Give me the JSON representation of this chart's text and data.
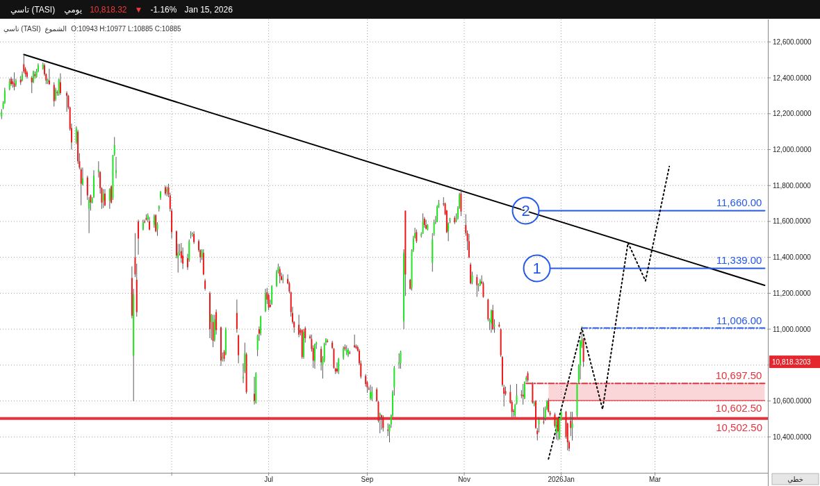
{
  "chart_data": {
    "type": "candlestick",
    "title": "تاسي (TASI)",
    "annotations": [
      "يومي",
      "10,818.32",
      "▼",
      "-1.16%",
      "Jan 15, 2026",
      "تاسي (TASI)",
      "الشموع",
      "O:10943 H:10977 L:10885 C:10885",
      "خطي",
      "10,818.3203"
    ],
    "x": [
      "2025-01-14",
      "2025-01-15",
      "2025-01-16",
      "2025-01-19",
      "2025-01-20",
      "2025-01-21",
      "2025-01-22",
      "2025-01-23",
      "2025-01-26",
      "2025-01-27",
      "2025-01-28",
      "2025-01-29",
      "2025-01-30",
      "2025-02-02",
      "2025-02-03",
      "2025-02-04",
      "2025-02-05",
      "2025-02-06",
      "2025-02-09",
      "2025-02-10",
      "2025-02-11",
      "2025-02-12",
      "2025-02-13",
      "2025-02-16",
      "2025-02-17",
      "2025-02-18",
      "2025-02-19",
      "2025-02-20",
      "2025-02-24",
      "2025-02-25",
      "2025-02-26",
      "2025-02-27",
      "2025-03-02",
      "2025-03-03",
      "2025-03-04",
      "2025-03-05",
      "2025-03-06",
      "2025-03-09",
      "2025-03-10",
      "2025-03-11",
      "2025-03-12",
      "2025-03-13",
      "2025-03-16",
      "2025-03-17",
      "2025-03-18",
      "2025-03-19",
      "2025-03-20",
      "2025-03-23",
      "2025-03-24",
      "2025-03-25",
      "2025-03-26",
      "2025-03-27",
      "2025-04-06",
      "2025-04-07",
      "2025-04-08",
      "2025-04-09",
      "2025-04-10",
      "2025-04-13",
      "2025-04-14",
      "2025-04-15",
      "2025-04-16",
      "2025-04-17",
      "2025-04-20",
      "2025-04-21",
      "2025-04-22",
      "2025-04-23",
      "2025-04-24",
      "2025-04-27",
      "2025-04-28",
      "2025-04-29",
      "2025-04-30",
      "2025-05-01",
      "2025-05-04",
      "2025-05-05",
      "2025-05-06",
      "2025-05-07",
      "2025-05-08",
      "2025-05-11",
      "2025-05-12",
      "2025-05-13",
      "2025-05-14",
      "2025-05-15",
      "2025-05-18",
      "2025-05-19",
      "2025-05-20",
      "2025-05-21",
      "2025-05-22",
      "2025-05-25",
      "2025-05-26",
      "2025-05-27",
      "2025-05-28",
      "2025-05-29",
      "2025-06-01",
      "2025-06-02",
      "2025-06-03",
      "2025-06-04",
      "2025-06-11",
      "2025-06-12",
      "2025-06-15",
      "2025-06-16",
      "2025-06-17",
      "2025-06-22",
      "2025-06-23",
      "2025-06-24",
      "2025-06-25",
      "2025-06-26",
      "2025-06-29",
      "2025-06-30",
      "2025-07-01",
      "2025-07-02",
      "2025-07-03",
      "2025-07-06",
      "2025-07-07",
      "2025-07-08",
      "2025-07-09",
      "2025-07-10",
      "2025-07-13",
      "2025-07-14",
      "2025-07-15",
      "2025-07-16",
      "2025-07-17",
      "2025-07-20",
      "2025-07-21",
      "2025-07-22",
      "2025-07-23",
      "2025-07-24",
      "2025-07-27",
      "2025-07-28",
      "2025-07-29",
      "2025-07-30",
      "2025-07-31",
      "2025-08-03",
      "2025-08-04",
      "2025-08-05",
      "2025-08-06",
      "2025-08-07",
      "2025-08-10",
      "2025-08-11",
      "2025-08-12",
      "2025-08-13",
      "2025-08-14",
      "2025-08-17",
      "2025-08-18",
      "2025-08-19",
      "2025-08-20",
      "2025-08-21",
      "2025-08-24",
      "2025-08-25",
      "2025-08-26",
      "2025-08-27",
      "2025-08-28",
      "2025-08-31",
      "2025-09-01",
      "2025-09-02",
      "2025-09-03",
      "2025-09-04",
      "2025-09-07",
      "2025-09-08",
      "2025-09-09",
      "2025-09-10",
      "2025-09-11",
      "2025-09-14",
      "2025-09-15",
      "2025-09-16",
      "2025-09-17",
      "2025-09-18",
      "2025-09-21",
      "2025-09-22",
      "2025-09-24",
      "2025-09-25",
      "2025-09-28",
      "2025-09-29",
      "2025-09-30",
      "2025-10-01",
      "2025-10-02",
      "2025-10-05",
      "2025-10-06",
      "2025-10-07",
      "2025-10-08",
      "2025-10-09",
      "2025-10-12",
      "2025-10-13",
      "2025-10-14",
      "2025-10-15",
      "2025-10-16",
      "2025-10-19",
      "2025-10-20",
      "2025-10-21",
      "2025-10-22",
      "2025-10-23",
      "2025-10-26",
      "2025-10-27",
      "2025-10-28",
      "2025-10-29",
      "2025-10-30",
      "2025-11-02",
      "2025-11-03",
      "2025-11-04",
      "2025-11-05",
      "2025-11-06",
      "2025-11-09",
      "2025-11-10",
      "2025-11-11",
      "2025-11-12",
      "2025-11-13",
      "2025-11-16",
      "2025-11-17",
      "2025-11-18",
      "2025-11-19",
      "2025-11-20",
      "2025-11-23",
      "2025-11-24",
      "2025-11-25",
      "2025-11-26",
      "2025-11-27",
      "2025-11-30",
      "2025-12-01",
      "2025-12-02",
      "2025-12-03",
      "2025-12-04",
      "2025-12-07",
      "2025-12-08",
      "2025-12-09",
      "2025-12-10",
      "2025-12-11",
      "2025-12-14",
      "2025-12-15",
      "2025-12-16",
      "2025-12-17",
      "2025-12-18",
      "2025-12-21",
      "2025-12-22",
      "2025-12-23",
      "2025-12-24",
      "2025-12-25",
      "2025-12-28",
      "2025-12-29",
      "2025-12-30",
      "2025-12-31",
      "2026-01-01",
      "2026-01-04",
      "2026-01-05",
      "2026-01-06",
      "2026-01-07",
      "2026-01-08",
      "2026-01-11",
      "2026-01-12",
      "2026-01-13",
      "2026-01-14",
      "2026-01-15"
    ],
    "ohlc": [
      [
        12185,
        12225,
        12170,
        12210
      ],
      [
        12230,
        12270,
        12225,
        12260
      ],
      [
        12260,
        12345,
        12255,
        12330
      ],
      [
        12335,
        12395,
        12330,
        12380
      ],
      [
        12395,
        12405,
        12355,
        12365
      ],
      [
        12380,
        12395,
        12345,
        12365
      ],
      [
        12370,
        12430,
        12330,
        12350
      ],
      [
        12360,
        12395,
        12350,
        12385
      ],
      [
        12390,
        12410,
        12360,
        12375
      ],
      [
        12385,
        12435,
        12380,
        12420
      ],
      [
        12475,
        12530,
        12425,
        12435
      ],
      [
        12450,
        12460,
        12405,
        12420
      ],
      [
        12430,
        12440,
        12395,
        12405
      ],
      [
        12400,
        12410,
        12315,
        12375
      ],
      [
        12375,
        12440,
        12370,
        12435
      ],
      [
        12420,
        12435,
        12395,
        12410
      ],
      [
        12405,
        12450,
        12400,
        12435
      ],
      [
        12435,
        12480,
        12430,
        12470
      ],
      [
        12450,
        12485,
        12445,
        12475
      ],
      [
        12470,
        12480,
        12410,
        12420
      ],
      [
        12420,
        12425,
        12365,
        12385
      ],
      [
        12375,
        12395,
        12365,
        12390
      ],
      [
        12385,
        12450,
        12360,
        12365
      ],
      [
        12360,
        12375,
        12240,
        12270
      ],
      [
        12280,
        12345,
        12270,
        12335
      ],
      [
        12320,
        12330,
        12300,
        12315
      ],
      [
        12310,
        12395,
        12300,
        12390
      ],
      [
        12375,
        12425,
        12305,
        12315
      ],
      [
        12315,
        12325,
        12210,
        12300
      ],
      [
        12300,
        12305,
        12225,
        12235
      ],
      [
        12235,
        12240,
        12105,
        12115
      ],
      [
        12120,
        12145,
        12000,
        12040
      ],
      [
        12040,
        12130,
        12030,
        12120
      ],
      [
        12100,
        12110,
        11920,
        11935
      ],
      [
        11935,
        11980,
        11890,
        11900
      ],
      [
        11890,
        11900,
        11690,
        11810
      ],
      [
        11805,
        11900,
        11800,
        11840
      ],
      [
        11845,
        11855,
        11720,
        11745
      ],
      [
        11670,
        11735,
        11535,
        11720
      ],
      [
        11745,
        11750,
        11660,
        11705
      ],
      [
        11705,
        11735,
        11700,
        11730
      ],
      [
        11735,
        11885,
        11730,
        11855
      ],
      [
        11875,
        11935,
        11845,
        11885
      ],
      [
        11875,
        11880,
        11755,
        11785
      ],
      [
        11785,
        11790,
        11670,
        11705
      ],
      [
        11715,
        11780,
        11675,
        11755
      ],
      [
        11755,
        11780,
        11685,
        11690
      ],
      [
        11715,
        11785,
        11670,
        11780
      ],
      [
        11795,
        11800,
        11700,
        11705
      ],
      [
        11730,
        11970,
        11720,
        11970
      ],
      [
        11975,
        12070,
        11965,
        12025
      ],
      [
        11870,
        11960,
        11840,
        11885
      ],
      [
        11285,
        11350,
        11060,
        11075
      ],
      [
        10850,
        11225,
        10600,
        11195
      ],
      [
        11400,
        11535,
        11290,
        11305
      ],
      [
        11275,
        11365,
        11070,
        11095
      ],
      [
        11600,
        11610,
        11415,
        11505
      ],
      [
        11555,
        11610,
        11550,
        11595
      ],
      [
        11600,
        11610,
        11590,
        11595
      ],
      [
        11620,
        11640,
        11605,
        11610
      ],
      [
        11610,
        11645,
        11595,
        11635
      ],
      [
        11600,
        11625,
        11550,
        11555
      ],
      [
        11580,
        11640,
        11565,
        11630
      ],
      [
        11635,
        11640,
        11540,
        11545
      ],
      [
        11555,
        11595,
        11520,
        11585
      ],
      [
        11670,
        11690,
        11655,
        11685
      ],
      [
        11730,
        11770,
        11720,
        11765
      ],
      [
        11790,
        11800,
        11745,
        11755
      ],
      [
        11765,
        11795,
        11740,
        11780
      ],
      [
        11790,
        11810,
        11735,
        11750
      ],
      [
        11745,
        11760,
        11655,
        11670
      ],
      [
        11660,
        11670,
        11505,
        11540
      ],
      [
        11545,
        11550,
        11395,
        11410
      ],
      [
        11395,
        11475,
        11315,
        11425
      ],
      [
        11425,
        11475,
        11410,
        11430
      ],
      [
        11435,
        11480,
        11370,
        11395
      ],
      [
        11410,
        11455,
        11335,
        11365
      ],
      [
        11395,
        11420,
        11330,
        11345
      ],
      [
        11385,
        11500,
        11375,
        11490
      ],
      [
        11525,
        11545,
        11505,
        11530
      ],
      [
        11530,
        11540,
        11515,
        11535
      ],
      [
        11530,
        11545,
        11475,
        11485
      ],
      [
        11490,
        11500,
        11430,
        11440
      ],
      [
        11440,
        11445,
        11370,
        11400
      ],
      [
        11400,
        11445,
        11385,
        11440
      ],
      [
        11425,
        11445,
        11300,
        11305
      ],
      [
        11270,
        11280,
        11215,
        11225
      ],
      [
        11200,
        11210,
        10950,
        11000
      ],
      [
        11040,
        11085,
        10940,
        11080
      ],
      [
        11040,
        11080,
        10900,
        10935
      ],
      [
        10940,
        11080,
        10930,
        11055
      ],
      [
        11095,
        11110,
        10970,
        10995
      ],
      [
        11010,
        11015,
        10795,
        10825
      ],
      [
        10835,
        10870,
        10820,
        10845
      ],
      [
        10875,
        10885,
        10820,
        10835
      ],
      [
        10860,
        11010,
        10855,
        11000
      ],
      [
        11090,
        11165,
        10980,
        11000
      ],
      [
        10965,
        10970,
        10810,
        10855
      ],
      [
        10725,
        10810,
        10700,
        10735
      ],
      [
        10765,
        10925,
        10755,
        10865
      ],
      [
        10860,
        10870,
        10640,
        10650
      ],
      [
        10640,
        10735,
        10580,
        10600
      ],
      [
        10590,
        10760,
        10585,
        10755
      ],
      [
        10885,
        10970,
        10850,
        10965
      ],
      [
        11000,
        11015,
        10935,
        10975
      ],
      [
        10975,
        11075,
        10965,
        11070
      ],
      [
        11100,
        11225,
        11095,
        11200
      ],
      [
        11205,
        11230,
        11140,
        11165
      ],
      [
        11190,
        11200,
        11105,
        11120
      ],
      [
        11135,
        11165,
        11120,
        11125
      ],
      [
        11140,
        11245,
        11135,
        11240
      ],
      [
        11240,
        11330,
        11235,
        11320
      ],
      [
        11320,
        11365,
        11310,
        11345
      ],
      [
        11335,
        11350,
        11255,
        11295
      ],
      [
        11295,
        11315,
        11270,
        11275
      ],
      [
        11275,
        11305,
        11255,
        11280
      ],
      [
        11280,
        11305,
        11250,
        11255
      ],
      [
        11255,
        11265,
        11200,
        11210
      ],
      [
        11205,
        11210,
        11070,
        11095
      ],
      [
        11090,
        11125,
        11030,
        11040
      ],
      [
        11040,
        11045,
        10980,
        11010
      ],
      [
        11025,
        11080,
        10955,
        10970
      ],
      [
        10995,
        11005,
        10965,
        10980
      ],
      [
        10995,
        11000,
        10835,
        10845
      ],
      [
        10845,
        11000,
        10835,
        10985
      ],
      [
        11005,
        11015,
        10925,
        10950
      ],
      [
        10960,
        10970,
        10945,
        10950
      ],
      [
        10945,
        10970,
        10875,
        10890
      ],
      [
        10895,
        10910,
        10785,
        10825
      ],
      [
        10820,
        10920,
        10780,
        10915
      ],
      [
        10915,
        10930,
        10890,
        10925
      ],
      [
        10890,
        10905,
        10770,
        10815
      ],
      [
        10800,
        10850,
        10725,
        10840
      ],
      [
        10825,
        10925,
        10815,
        10920
      ],
      [
        10925,
        10950,
        10910,
        10945
      ],
      [
        10935,
        10945,
        10925,
        10930
      ],
      [
        10925,
        10935,
        10890,
        10895
      ],
      [
        10890,
        10895,
        10780,
        10785
      ],
      [
        10780,
        10785,
        10750,
        10765
      ],
      [
        10780,
        10815,
        10755,
        10765
      ],
      [
        10765,
        10840,
        10750,
        10835
      ],
      [
        10840,
        10905,
        10830,
        10895
      ],
      [
        10900,
        10915,
        10880,
        10890
      ],
      [
        10870,
        10910,
        10855,
        10885
      ],
      [
        10855,
        10895,
        10845,
        10885
      ],
      [
        10870,
        10880,
        10860,
        10865
      ],
      [
        10910,
        10970,
        10895,
        10900
      ],
      [
        10905,
        10915,
        10890,
        10895
      ],
      [
        10900,
        10910,
        10875,
        10880
      ],
      [
        10880,
        10890,
        10800,
        10810
      ],
      [
        10810,
        10825,
        10725,
        10735
      ],
      [
        10740,
        10750,
        10680,
        10695
      ],
      [
        10705,
        10710,
        10645,
        10675
      ],
      [
        10670,
        10680,
        10660,
        10665
      ],
      [
        10615,
        10690,
        10605,
        10650
      ],
      [
        10610,
        10680,
        10600,
        10650
      ],
      [
        10665,
        10675,
        10595,
        10600
      ],
      [
        10595,
        10600,
        10480,
        10490
      ],
      [
        10520,
        10535,
        10420,
        10530
      ],
      [
        10520,
        10525,
        10440,
        10510
      ],
      [
        10510,
        10520,
        10430,
        10450
      ],
      [
        10440,
        10475,
        10405,
        10435
      ],
      [
        10430,
        10470,
        10370,
        10465
      ],
      [
        10470,
        10525,
        10450,
        10520
      ],
      [
        10520,
        10660,
        10510,
        10650
      ],
      [
        10675,
        10795,
        10630,
        10785
      ],
      [
        10805,
        10865,
        10780,
        10815
      ],
      [
        10810,
        10880,
        10780,
        10875
      ],
      [
        11045,
        11445,
        11000,
        11425
      ],
      [
        11660,
        11660,
        11185,
        11305
      ],
      [
        11275,
        11280,
        11220,
        11225
      ],
      [
        11230,
        11445,
        11215,
        11440
      ],
      [
        11440,
        11520,
        11430,
        11505
      ],
      [
        11510,
        11565,
        11505,
        11535
      ],
      [
        11540,
        11555,
        11480,
        11490
      ],
      [
        11520,
        11540,
        11510,
        11530
      ],
      [
        11535,
        11645,
        11530,
        11605
      ],
      [
        11615,
        11625,
        11565,
        11580
      ],
      [
        11580,
        11610,
        11555,
        11560
      ],
      [
        11555,
        11585,
        11550,
        11580
      ],
      [
        11370,
        11535,
        11320,
        11500
      ],
      [
        11530,
        11610,
        11520,
        11595
      ],
      [
        11595,
        11630,
        11585,
        11600
      ],
      [
        11600,
        11690,
        11595,
        11685
      ],
      [
        11685,
        11720,
        11675,
        11700
      ],
      [
        11700,
        11735,
        11685,
        11695
      ],
      [
        11700,
        11705,
        11635,
        11640
      ],
      [
        11660,
        11665,
        11535,
        11540
      ],
      [
        11545,
        11595,
        11490,
        11590
      ],
      [
        11605,
        11620,
        11590,
        11615
      ],
      [
        11620,
        11630,
        11585,
        11595
      ],
      [
        11600,
        11645,
        11595,
        11610
      ],
      [
        11615,
        11685,
        11610,
        11675
      ],
      [
        11675,
        11760,
        11670,
        11750
      ],
      [
        11755,
        11780,
        11630,
        11655
      ],
      [
        11580,
        11640,
        11520,
        11535
      ],
      [
        11535,
        11550,
        11440,
        11490
      ],
      [
        11490,
        11530,
        11395,
        11400
      ],
      [
        11360,
        11370,
        11250,
        11255
      ],
      [
        11260,
        11320,
        11250,
        11300
      ],
      [
        11290,
        11305,
        11180,
        11245
      ],
      [
        11240,
        11255,
        11210,
        11245
      ],
      [
        11245,
        11280,
        11240,
        11270
      ],
      [
        11265,
        11300,
        11250,
        11255
      ],
      [
        11255,
        11265,
        11175,
        11180
      ],
      [
        11165,
        11170,
        11045,
        11055
      ],
      [
        11040,
        11060,
        10995,
        11050
      ],
      [
        11030,
        11110,
        10980,
        11105
      ],
      [
        11105,
        11135,
        10995,
        11000
      ],
      [
        11015,
        11055,
        10980,
        11025
      ],
      [
        11025,
        11040,
        11010,
        11015
      ],
      [
        11000,
        11005,
        10845,
        10855
      ],
      [
        10845,
        10850,
        10680,
        10690
      ],
      [
        10675,
        10690,
        10570,
        10640
      ],
      [
        10655,
        10680,
        10630,
        10640
      ],
      [
        10650,
        10690,
        10585,
        10590
      ],
      [
        10595,
        10605,
        10510,
        10540
      ],
      [
        10545,
        10555,
        10510,
        10540
      ],
      [
        10520,
        10585,
        10510,
        10580
      ],
      [
        10585,
        10695,
        10580,
        10630
      ],
      [
        10635,
        10660,
        10615,
        10630
      ],
      [
        10635,
        10695,
        10580,
        10625
      ],
      [
        10615,
        10710,
        10610,
        10705
      ],
      [
        10715,
        10740,
        10705,
        10730
      ],
      [
        10755,
        10765,
        10705,
        10715
      ],
      [
        10695,
        10705,
        10585,
        10590
      ],
      [
        10580,
        10600,
        10570,
        10590
      ],
      [
        10600,
        10605,
        10445,
        10450
      ],
      [
        10435,
        10450,
        10380,
        10415
      ],
      [
        10470,
        10510,
        10425,
        10495
      ],
      [
        10485,
        10565,
        10470,
        10480
      ],
      [
        10505,
        10570,
        10490,
        10555
      ],
      [
        10555,
        10605,
        10550,
        10600
      ],
      [
        10600,
        10615,
        10535,
        10540
      ],
      [
        10535,
        10545,
        10515,
        10525
      ],
      [
        10525,
        10535,
        10450,
        10460
      ],
      [
        10420,
        10500,
        10385,
        10495
      ],
      [
        10505,
        10510,
        10380,
        10430
      ],
      [
        10390,
        10510,
        10385,
        10505
      ],
      [
        10495,
        10545,
        10490,
        10540
      ],
      [
        10540,
        10545,
        10390,
        10400
      ],
      [
        10475,
        10480,
        10325,
        10370
      ],
      [
        10370,
        10380,
        10320,
        10335
      ],
      [
        10490,
        10540,
        10405,
        10450
      ],
      [
        10450,
        10540,
        10380,
        10475
      ],
      [
        10520,
        10700,
        10510,
        10695
      ],
      [
        10705,
        10805,
        10700,
        10800
      ],
      [
        10800,
        10940,
        10720,
        10935
      ],
      [
        10905,
        11015,
        10895,
        10940
      ],
      [
        10945,
        10950,
        10790,
        10818.32
      ]
    ],
    "colors": [
      "#22e622",
      "#22e622",
      "#22e622",
      "#22e622",
      "#f01818",
      "#f01818",
      "#f01818",
      "#22e622",
      "#f01818",
      "#22e622",
      "#f01818",
      "#f01818",
      "#f01818",
      "#f01818",
      "#22e622",
      "#f01818",
      "#22e622",
      "#22e622",
      "#22e622",
      "#f01818",
      "#f01818",
      "#22e622",
      "#f01818",
      "#f01818",
      "#22e622",
      "#f01818",
      "#22e622",
      "#f01818",
      "#f01818",
      "#f01818",
      "#f01818",
      "#f01818",
      "#22e622",
      "#f01818",
      "#f01818",
      "#f01818",
      "#22e622",
      "#f01818",
      "#22e622",
      "#f01818",
      "#22e622",
      "#22e622",
      "#22e622",
      "#f01818",
      "#f01818",
      "#22e622",
      "#f01818",
      "#22e622",
      "#f01818",
      "#22e622",
      "#22e622",
      "#22e622",
      "#f01818",
      "#22e622",
      "#f01818",
      "#f01818",
      "#f01818",
      "#22e622",
      "#f01818",
      "#f01818",
      "#22e622",
      "#f01818",
      "#22e622",
      "#f01818",
      "#22e622",
      "#22e622",
      "#22e622",
      "#f01818",
      "#22e622",
      "#f01818",
      "#f01818",
      "#f01818",
      "#f01818",
      "#22e622",
      "#22e622",
      "#f01818",
      "#f01818",
      "#f01818",
      "#22e622",
      "#22e622",
      "#22e622",
      "#f01818",
      "#f01818",
      "#f01818",
      "#22e622",
      "#f01818",
      "#f01818",
      "#f01818",
      "#22e622",
      "#f01818",
      "#22e622",
      "#f01818",
      "#f01818",
      "#22e622",
      "#f01818",
      "#22e622",
      "#f01818",
      "#f01818",
      "#22e622",
      "#22e622",
      "#f01818",
      "#f01818",
      "#22e622",
      "#22e622",
      "#f01818",
      "#22e622",
      "#22e622",
      "#f01818",
      "#f01818",
      "#f01818",
      "#22e622",
      "#22e622",
      "#22e622",
      "#f01818",
      "#f01818",
      "#22e622",
      "#f01818",
      "#f01818",
      "#f01818",
      "#f01818",
      "#f01818",
      "#f01818",
      "#f01818",
      "#f01818",
      "#22e622",
      "#f01818",
      "#f01818",
      "#f01818",
      "#f01818",
      "#22e622",
      "#22e622",
      "#f01818",
      "#22e622",
      "#22e622",
      "#22e622",
      "#f01818",
      "#f01818",
      "#f01818",
      "#f01818",
      "#f01818",
      "#22e622",
      "#22e622",
      "#f01818",
      "#22e622",
      "#22e622",
      "#f01818",
      "#f01818",
      "#f01818",
      "#f01818",
      "#f01818",
      "#f01818",
      "#f01818",
      "#f01818",
      "#f01818",
      "#22e622",
      "#22e622",
      "#f01818",
      "#f01818",
      "#22e622",
      "#f01818",
      "#f01818",
      "#f01818",
      "#22e622",
      "#22e622",
      "#22e622",
      "#22e622",
      "#22e622",
      "#22e622",
      "#22e622",
      "#f01818",
      "#f01818",
      "#22e622",
      "#22e622",
      "#22e622",
      "#f01818",
      "#22e622",
      "#22e622",
      "#f01818",
      "#f01818",
      "#22e622",
      "#22e622",
      "#22e622",
      "#22e622",
      "#22e622",
      "#22e622",
      "#f01818",
      "#f01818",
      "#f01818",
      "#22e622",
      "#22e622",
      "#f01818",
      "#22e622",
      "#22e622",
      "#22e622",
      "#f01818",
      "#f01818",
      "#f01818",
      "#f01818",
      "#f01818",
      "#22e622",
      "#f01818",
      "#22e622",
      "#22e622",
      "#f01818",
      "#f01818",
      "#f01818",
      "#22e622",
      "#22e622",
      "#f01818",
      "#22e622",
      "#f01818",
      "#f01818",
      "#f01818",
      "#f01818",
      "#f01818",
      "#f01818",
      "#f01818",
      "#f01818",
      "#22e622",
      "#22e622",
      "#f01818",
      "#f01818",
      "#22e622",
      "#22e622",
      "#f01818",
      "#f01818",
      "#22e622",
      "#f01818",
      "#f01818",
      "#22e622",
      "#f01818",
      "#22e622",
      "#22e622",
      "#f01818",
      "#f01818",
      "#f01818",
      "#22e622",
      "#f01818",
      "#22e622",
      "#22e622",
      "#f01818",
      "#f01818",
      "#f01818",
      "#f01818",
      "#22e622",
      "#22e622",
      "#22e622",
      "#22e622",
      "#22e622",
      "#f01818"
    ],
    "series": [
      {
        "type": "line",
        "x": [
          "2025-01-28",
          "2026-05-09"
        ],
        "values": [
          12530,
          11244
        ],
        "color": "#000000"
      },
      {
        "type": "line",
        "name": "2",
        "x": [
          "2025-12-18",
          "2026-05-09"
        ],
        "values": [
          11660,
          11660
        ],
        "value_labels": [
          null,
          "11,660.00"
        ],
        "color": "#2458e8"
      },
      {
        "type": "line",
        "name": "1",
        "x": [
          "2025-12-25",
          "2026-05-09"
        ],
        "values": [
          11339,
          11339
        ],
        "value_labels": [
          null,
          "11,339.00"
        ],
        "color": "#2458e8"
      },
      {
        "type": "line",
        "x": [
          "2026-01-14",
          "2026-05-09"
        ],
        "values": [
          11006,
          11006
        ],
        "value_labels": [
          null,
          "11,006.00"
        ],
        "color": "#2458e8",
        "line_style": "dashed"
      },
      {
        "type": "line",
        "x": [
          "2025-12-10",
          "2026-05-09"
        ],
        "values": [
          10697.5,
          10697.5
        ],
        "value_labels": [
          null,
          "10,697.50"
        ],
        "color": "#e8323c",
        "line_style": "dashed"
      },
      {
        "type": "line",
        "x": [
          "2025-12-24",
          "2026-05-09"
        ],
        "values": [
          10602.5,
          10602.5
        ],
        "lower": [
          10602.5,
          10602.5
        ],
        "upper": [
          10697.5,
          10697.5
        ],
        "value_labels": [
          null,
          "10,602.50"
        ],
        "color": "#e8323c"
      },
      {
        "type": "line",
        "x": [
          "2025-12-24",
          "2026-01-14",
          "2026-01-27",
          "2026-02-12",
          "2026-02-23",
          "2026-03-10"
        ],
        "values": [
          10277,
          11006,
          10554,
          11481,
          11269,
          11906
        ],
        "color": "#000000",
        "line_style": "dotted"
      }
    ],
    "ref_lines": [
      {
        "axis": "y",
        "value": 10502.5,
        "label": "10,502.50",
        "color": "#e8323c"
      }
    ],
    "xlim": [
      "2025-01-13",
      "2026-05-11"
    ],
    "xticks": [
      {
        "value": "2025-03-01",
        "label": null
      },
      {
        "value": "2025-05-01",
        "label": null
      },
      {
        "value": "2025-07-01",
        "label": "Jul"
      },
      {
        "value": "2025-09-01",
        "label": "Sep"
      },
      {
        "value": "2025-11-01",
        "label": "Nov"
      },
      {
        "value": "2026-01-01",
        "label": "2026Jan"
      },
      {
        "value": "2026-03-01",
        "label": "Mar"
      }
    ],
    "ylim": [
      10200,
      12725
    ],
    "yticks": [
      {
        "value": 10400,
        "label": "10,400.0000"
      },
      {
        "value": 10600,
        "label": "10,600.0000"
      },
      {
        "value": 10800,
        "label": null
      },
      {
        "value": 11000,
        "label": "11,000.0000"
      },
      {
        "value": 11200,
        "label": "11,200.0000"
      },
      {
        "value": 11400,
        "label": "11,400.0000"
      },
      {
        "value": 11600,
        "label": "11,600.0000"
      },
      {
        "value": 11800,
        "label": "11,800.0000"
      },
      {
        "value": 12000,
        "label": "12,000.0000"
      },
      {
        "value": 12200,
        "label": "12,200.0000"
      },
      {
        "value": 12400,
        "label": "12,400.0000"
      },
      {
        "value": 12600,
        "label": "12,600.0000"
      }
    ],
    "grid": true
  }
}
